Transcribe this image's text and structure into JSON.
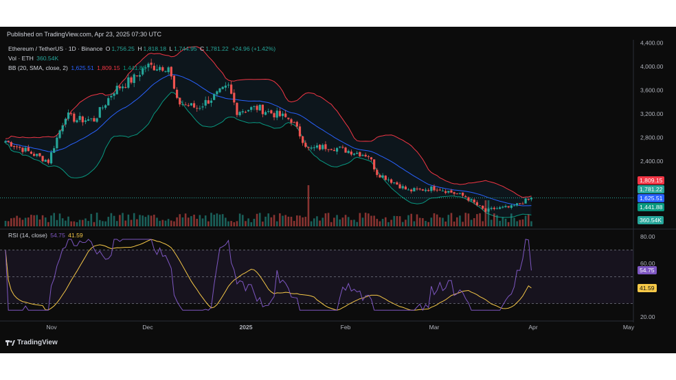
{
  "header": {
    "published": "Published on TradingView.com, Apr 23, 2025 07:30 UTC"
  },
  "legend": {
    "symbol": "Ethereum / TetherUS · 1D · Binance",
    "o_label": "O",
    "o": "1,756.25",
    "h_label": "H",
    "h": "1,818.18",
    "l_label": "L",
    "l": "1,744.95",
    "c_label": "C",
    "c": "1,781.22",
    "change": "+24.96 (+1.42%)",
    "vol_label": "Vol · ETH",
    "vol": "360.54K",
    "bb_label": "BB (20, SMA, close, 2)",
    "bb_basis": "1,625.51",
    "bb_upper": "1,809.15",
    "bb_lower": "1,441.88",
    "rsi_label": "RSI (14, close)",
    "rsi": "54.75",
    "rsi_ma": "41.59"
  },
  "price_axis": {
    "ticks": [
      "4,400.00",
      "4,000.00",
      "3,600.00",
      "3,200.00",
      "2,800.00",
      "2,400.00"
    ]
  },
  "rsi_axis": {
    "ticks": [
      "80.00",
      "60.00",
      "20.00"
    ]
  },
  "time_axis": {
    "ticks": [
      "Nov",
      "Dec",
      "2025",
      "Feb",
      "Mar",
      "Apr",
      "May"
    ]
  },
  "tags": {
    "upper": "1,809.15",
    "close": "1,781.22",
    "basis": "1,625.51",
    "lower": "1,441.88",
    "volume": "360.54K",
    "rsi": "54.75",
    "rsi_ma": "41.59"
  },
  "footer": {
    "brand": "TradingView"
  },
  "colors": {
    "up": "#26a69a",
    "down": "#ef5350",
    "basis": "#2962ff",
    "bb_upper": "#f23645",
    "bb_lower": "#089981",
    "rsi": "#7e57c2",
    "rsi_ma": "#f7c948"
  },
  "chart_data": {
    "type": "candlestick",
    "title": "Ethereum / TetherUS · 1D · Binance",
    "ylim": [
      1300,
      4450
    ],
    "rsi_ylim": [
      20,
      80
    ],
    "price_anchors": [
      {
        "date": "Oct 20",
        "close": 2740
      },
      {
        "date": "Oct 28",
        "close": 2560
      },
      {
        "date": "Nov 04",
        "close": 2400
      },
      {
        "date": "Nov 10",
        "close": 3180
      },
      {
        "date": "Nov 14",
        "close": 3100
      },
      {
        "date": "Nov 20",
        "close": 3100
      },
      {
        "date": "Nov 27",
        "close": 3600
      },
      {
        "date": "Dec 04",
        "close": 3800
      },
      {
        "date": "Dec 08",
        "close": 4000
      },
      {
        "date": "Dec 16",
        "close": 4000
      },
      {
        "date": "Dec 19",
        "close": 3400
      },
      {
        "date": "Dec 26",
        "close": 3300
      },
      {
        "date": "Jan 06",
        "close": 3650
      },
      {
        "date": "Jan 09",
        "close": 3250
      },
      {
        "date": "Jan 16",
        "close": 3300
      },
      {
        "date": "Jan 28",
        "close": 3100
      },
      {
        "date": "Feb 03",
        "close": 2600
      },
      {
        "date": "Feb 10",
        "close": 2650
      },
      {
        "date": "Feb 24",
        "close": 2500
      },
      {
        "date": "Feb 27",
        "close": 2200
      },
      {
        "date": "Mar 03",
        "close": 2100
      },
      {
        "date": "Mar 10",
        "close": 1900
      },
      {
        "date": "Mar 20",
        "close": 1950
      },
      {
        "date": "Mar 30",
        "close": 1800
      },
      {
        "date": "Apr 06",
        "close": 1550
      },
      {
        "date": "Apr 09",
        "close": 1600
      },
      {
        "date": "Apr 15",
        "close": 1620
      },
      {
        "date": "Apr 21",
        "close": 1756
      },
      {
        "date": "Apr 22",
        "close": 1781
      }
    ],
    "last": {
      "open": 1756.25,
      "high": 1818.18,
      "low": 1744.95,
      "close": 1781.22,
      "volume": "360.54K"
    },
    "bollinger": {
      "basis": 1625.51,
      "upper": 1809.15,
      "lower": 1441.88
    },
    "rsi": {
      "value": 54.75,
      "ma": 41.59
    }
  }
}
